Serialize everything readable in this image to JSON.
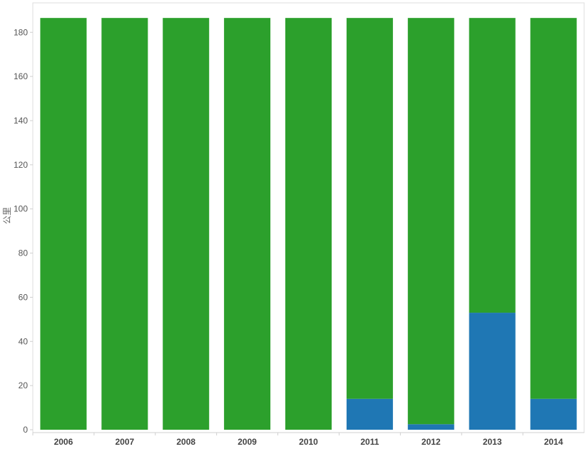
{
  "chart_data": {
    "type": "bar",
    "stacked": true,
    "categories": [
      "2006",
      "2007",
      "2008",
      "2009",
      "2010",
      "2011",
      "2012",
      "2013",
      "2014"
    ],
    "series": [
      {
        "values": [
          0,
          0,
          0,
          0,
          0,
          14,
          2.5,
          53,
          14
        ],
        "color": "#1f77b4"
      },
      {
        "values": [
          186.5,
          186.5,
          186.5,
          186.5,
          186.5,
          172.5,
          184,
          133.5,
          172.5
        ],
        "color": "#2ca02c"
      }
    ],
    "ylabel": "公里",
    "ylim": [
      0,
      190
    ],
    "yticks": [
      0,
      20,
      40,
      60,
      80,
      100,
      120,
      140,
      160,
      180
    ],
    "grid": false,
    "legend": "none"
  }
}
